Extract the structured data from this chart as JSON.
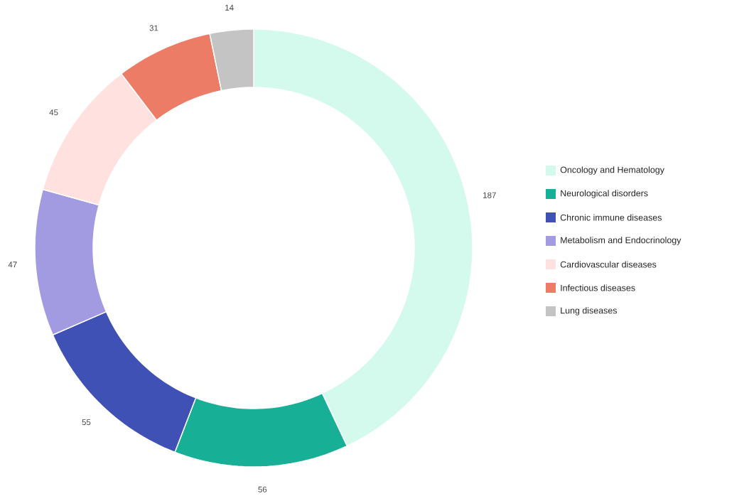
{
  "chart_data": {
    "type": "donut",
    "categories": [
      "Oncology and Hematology",
      "Neurological disorders",
      "Chronic immune diseases",
      "Metabolism and Endocrinology",
      "Cardiovascular diseases",
      "Infectious diseases",
      "Lung diseases"
    ],
    "values": [
      187,
      56,
      55,
      47,
      45,
      31,
      14
    ],
    "colors": [
      "#d3faec",
      "#17b097",
      "#3f51b5",
      "#a29be2",
      "#ffe1e0",
      "#ec7c66",
      "#c4c4c4"
    ],
    "data_labels": true,
    "legend": "right"
  }
}
